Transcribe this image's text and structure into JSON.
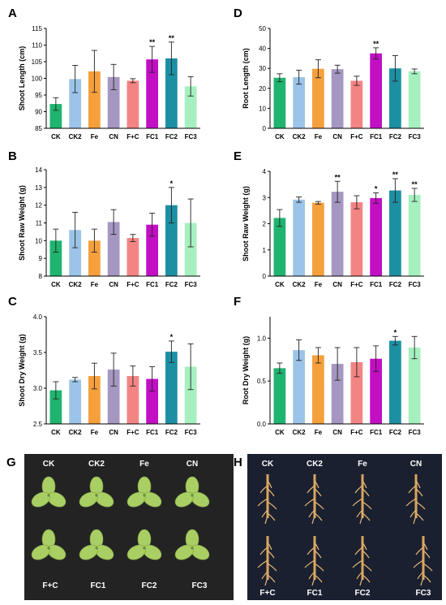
{
  "colors": [
    "#1fb46f",
    "#9cc4e8",
    "#f5a03c",
    "#a597c2",
    "#f28584",
    "#c20fc4",
    "#1d8fa3",
    "#a6f0c0"
  ],
  "photo_panels": [
    {
      "letter": "G",
      "labels": [
        "CK",
        "CK2",
        "Fe",
        "CN",
        "F+C",
        "FC1",
        "FC2",
        "FC3"
      ]
    },
    {
      "letter": "H",
      "labels": [
        "CK",
        "CK2",
        "Fe",
        "CN",
        "F+C",
        "FC1",
        "FC2",
        "FC3"
      ]
    }
  ],
  "chart_data": [
    {
      "letter": "A",
      "type": "bar",
      "ylabel": "Shoot Length (cm)",
      "categories": [
        "CK",
        "CK2",
        "Fe",
        "CN",
        "F+C",
        "FC1",
        "FC2",
        "FC3"
      ],
      "values": [
        92.3,
        99.8,
        102.1,
        100.4,
        99.3,
        105.7,
        106.0,
        97.6
      ],
      "errors": [
        1.9,
        4.1,
        6.3,
        3.8,
        0.6,
        3.9,
        4.9,
        2.9
      ],
      "sig": [
        "",
        "",
        "",
        "",
        "",
        "**",
        "**",
        ""
      ],
      "ylim": [
        85,
        115
      ],
      "yticks": [
        "85",
        "90",
        "95",
        "100",
        "105",
        "110",
        "115"
      ]
    },
    {
      "letter": "D",
      "type": "bar",
      "ylabel": "Root Length (cm)",
      "categories": [
        "CK",
        "CK2",
        "Fe",
        "CN",
        "F+C",
        "FC1",
        "FC2",
        "FC3"
      ],
      "values": [
        25.3,
        25.6,
        29.8,
        29.6,
        23.8,
        37.5,
        30.0,
        28.5
      ],
      "errors": [
        2.0,
        3.5,
        4.5,
        2.0,
        2.3,
        2.8,
        6.4,
        1.2
      ],
      "sig": [
        "",
        "",
        "",
        "",
        "",
        "**",
        "",
        ""
      ],
      "ylim": [
        0,
        50
      ],
      "yticks": [
        "0",
        "10",
        "20",
        "30",
        "40",
        "50"
      ]
    },
    {
      "letter": "B",
      "type": "bar",
      "ylabel": "Shoot Raw Weight (g)",
      "categories": [
        "CK",
        "CK2",
        "Fe",
        "CN",
        "F+C",
        "FC1",
        "FC2",
        "FC3"
      ],
      "values": [
        10.0,
        10.6,
        10.0,
        11.05,
        10.15,
        10.9,
        12.0,
        11.0
      ],
      "errors": [
        0.65,
        1.0,
        0.65,
        0.7,
        0.2,
        0.65,
        1.0,
        1.35
      ],
      "sig": [
        "",
        "",
        "",
        "",
        "",
        "",
        "*",
        ""
      ],
      "ylim": [
        8,
        14
      ],
      "yticks": [
        "8",
        "9",
        "10",
        "11",
        "12",
        "13",
        "14"
      ]
    },
    {
      "letter": "E",
      "type": "bar",
      "ylabel": "Shoot Raw Weight (g)",
      "categories": [
        "CK",
        "CK2",
        "Fe",
        "CN",
        "F+C",
        "FC1",
        "FC2",
        "FC3"
      ],
      "values": [
        2.22,
        2.92,
        2.8,
        3.22,
        2.82,
        2.98,
        3.27,
        3.1
      ],
      "errors": [
        0.32,
        0.1,
        0.05,
        0.4,
        0.25,
        0.2,
        0.45,
        0.25
      ],
      "sig": [
        "",
        "",
        "",
        "**",
        "",
        "*",
        "**",
        "**"
      ],
      "ylim": [
        0,
        4
      ],
      "yticks": [
        "0",
        "1",
        "2",
        "3",
        "4"
      ]
    },
    {
      "letter": "C",
      "type": "bar",
      "ylabel": "Shoot Dry Weight (g)",
      "categories": [
        "CK",
        "CK2",
        "Fe",
        "CN",
        "F+C",
        "FC1",
        "FC2",
        "FC3"
      ],
      "values": [
        2.97,
        3.12,
        3.17,
        3.26,
        3.17,
        3.13,
        3.51,
        3.3
      ],
      "errors": [
        0.12,
        0.03,
        0.18,
        0.23,
        0.14,
        0.17,
        0.15,
        0.32
      ],
      "sig": [
        "",
        "",
        "",
        "",
        "",
        "",
        "*",
        ""
      ],
      "ylim": [
        2.5,
        4.0
      ],
      "yticks": [
        "2.5",
        "3.0",
        "3.5",
        "4.0"
      ]
    },
    {
      "letter": "F",
      "type": "bar",
      "ylabel": "Root Dry Weight (g)",
      "categories": [
        "CK",
        "CK2",
        "Fe",
        "CN",
        "F+C",
        "FC1",
        "FC2",
        "FC3"
      ],
      "values": [
        0.65,
        0.86,
        0.8,
        0.7,
        0.72,
        0.76,
        0.97,
        0.89
      ],
      "errors": [
        0.06,
        0.12,
        0.09,
        0.19,
        0.17,
        0.15,
        0.05,
        0.13
      ],
      "sig": [
        "",
        "",
        "",
        "",
        "",
        "",
        "*",
        ""
      ],
      "ylim": [
        0,
        1.25
      ],
      "yticks": [
        "0.0",
        "0.5",
        "1.0"
      ]
    }
  ]
}
